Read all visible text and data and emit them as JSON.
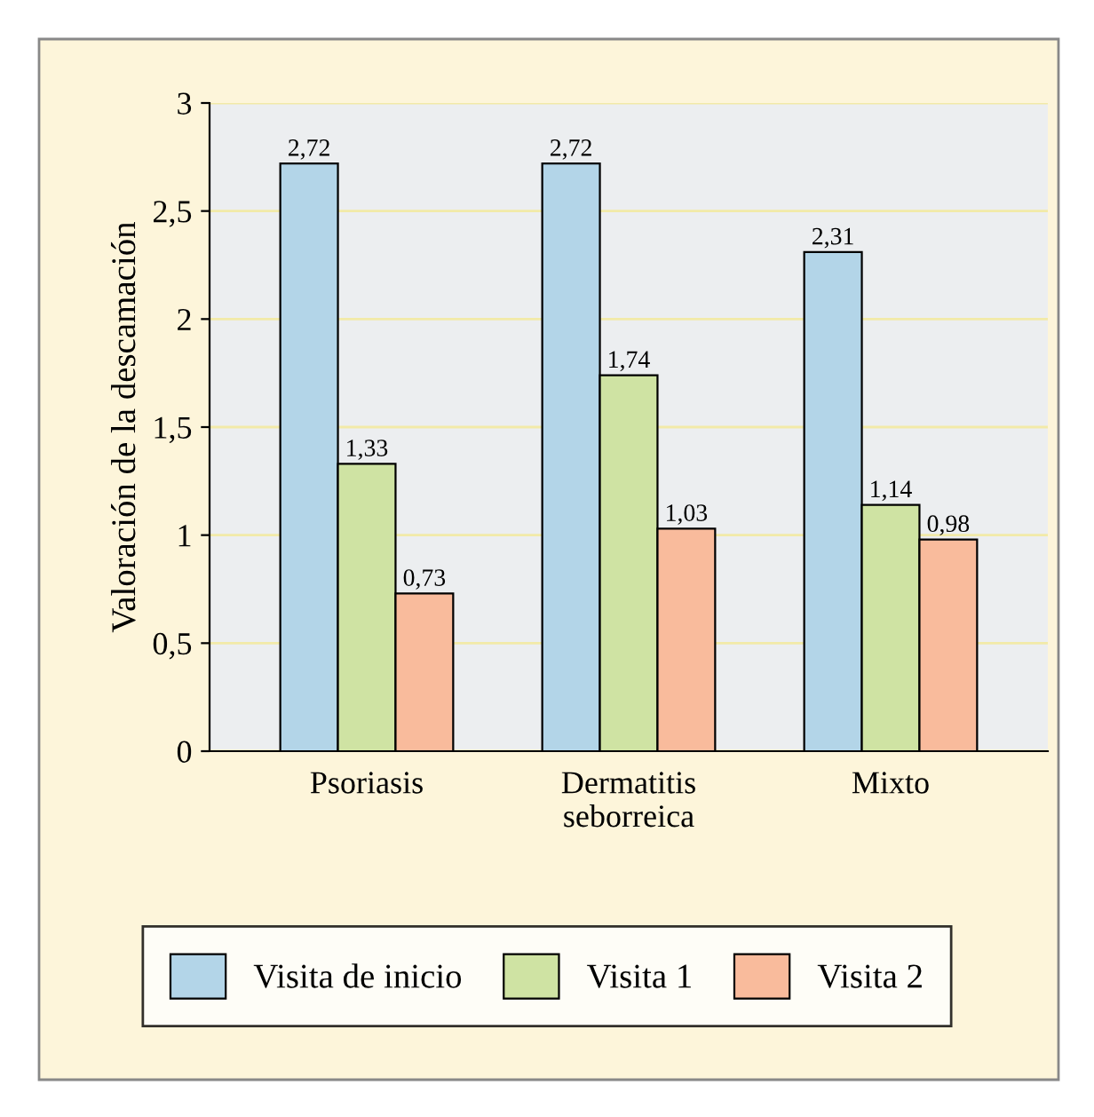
{
  "chart_data": {
    "type": "bar",
    "ylabel": "Valoración de la descamación",
    "categories": [
      "Psoriasis",
      "Dermatitis\nseborreica",
      "Mixto"
    ],
    "series": [
      {
        "name": "Visita de inicio",
        "color": "#b3d5e8",
        "values": [
          2.72,
          2.72,
          2.31
        ],
        "value_labels": [
          "2,72",
          "2,72",
          "2,31"
        ]
      },
      {
        "name": "Visita 1",
        "color": "#cfe3a3",
        "values": [
          1.33,
          1.74,
          1.14
        ],
        "value_labels": [
          "1,33",
          "1,74",
          "1,14"
        ]
      },
      {
        "name": "Visita 2",
        "color": "#f9bb9c",
        "values": [
          0.73,
          1.03,
          0.98
        ],
        "value_labels": [
          "0,73",
          "1,03",
          "0,98"
        ]
      }
    ],
    "ylim": [
      0,
      3
    ],
    "yticks": [
      0,
      {
        "value": 0.5,
        "label": "0,5"
      },
      1,
      {
        "value": 1.5,
        "label": "1,5"
      },
      2,
      {
        "value": 2.5,
        "label": "2,5"
      },
      3
    ],
    "grid": "y",
    "legend": "bottom"
  }
}
